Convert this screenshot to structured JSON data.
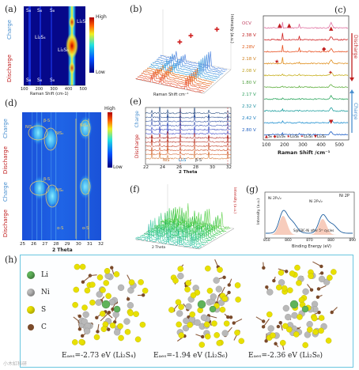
{
  "panel_a": {
    "tag": "(a)",
    "y_top": "Charge",
    "y_bottom": "Discharge",
    "colorbar_high": "High",
    "colorbar_low": "Low",
    "peaks_top": [
      "S₈",
      "S₈",
      "S₈"
    ],
    "peaks_bottom": [
      "S₈",
      "S₈",
      "S₈"
    ],
    "species": [
      "Li₂S₆",
      "Li₂S₄",
      "Li₂S₈"
    ],
    "xticks": [
      "100",
      "200",
      "300",
      "400",
      "500"
    ],
    "xlabel": "Raman Shift (cm-1)"
  },
  "panel_b": {
    "tag": "(b)",
    "xlabel": "Raman Shift cm⁻¹",
    "ylabel": "Intensity (a.u.)"
  },
  "panel_c": {
    "tag": "(c)",
    "voltages": [
      "OCV",
      "2.38 V",
      "2.28V",
      "2.18 V",
      "2.08 V",
      "1.80 V",
      "2.17 V",
      "2.32 V",
      "2.42 V",
      "2.80 V"
    ],
    "side_top": "Discharge",
    "side_bottom": "Charge",
    "legend": [
      "S₈",
      "Li₂S₈",
      "Li₂S₆",
      "Li₂S₄",
      "Li₂S₂"
    ],
    "xticks": [
      "100",
      "200",
      "300",
      "400",
      "500"
    ],
    "xlabel": "Raman Shift /cm⁻¹"
  },
  "panel_d": {
    "tag": "(d)",
    "sides": [
      "Charge",
      "Discharge",
      "Charge",
      "Discharge"
    ],
    "colorbar_high": "High",
    "colorbar_low": "Low",
    "labels": [
      "NiS₂",
      "β-S",
      "NiS₂",
      "NiS₂",
      "β-S",
      "NiS₂",
      "α-S",
      "α-S"
    ],
    "xticks": [
      "25",
      "26",
      "27",
      "28",
      "29",
      "30",
      "31",
      "32"
    ],
    "xlabel": "2 Theta"
  },
  "panel_e": {
    "tag": "(e)",
    "side_top": "Charge",
    "side_bottom": "Discharge",
    "legend": [
      "NiS",
      "Li₂S",
      "β-S"
    ],
    "xticks": [
      "22",
      "24",
      "26",
      "28",
      "30",
      "32"
    ],
    "xlabel": "2 Theta"
  },
  "panel_f": {
    "tag": "(f)",
    "xlabel": "2 Theta",
    "ylabel": "Intensity (a.u.)"
  },
  "panel_g": {
    "tag": "(g)",
    "title": "Ni 2P",
    "peak_labels": [
      "Ni 2P₁/₂",
      "Ni 2P₃/₂"
    ],
    "note": "S@CBC-Ni after 5ᵗʰ cycles",
    "xticks": [
      "850",
      "860",
      "870",
      "880",
      "890"
    ],
    "xlabel": "Binding Energy (eV)",
    "ylabel": "Intensity (a.u.)"
  },
  "panel_h": {
    "tag": "(h)",
    "legend": [
      {
        "symbol": "Li",
        "color": "#5fb35a"
      },
      {
        "symbol": "Ni",
        "color": "#b9b9b9"
      },
      {
        "symbol": "S",
        "color": "#e8e000"
      },
      {
        "symbol": "C",
        "color": "#7a4a2a"
      }
    ],
    "energies": [
      "Eₐₑₛ=-2.73 eV (Li₂S₄)",
      "Eₐₑₛ=-1.94 eV (Li₂S₆)",
      "Eₐₑₛ=-2.36 eV (Li₂S₈)"
    ]
  },
  "watermark": "小木虹科研"
}
